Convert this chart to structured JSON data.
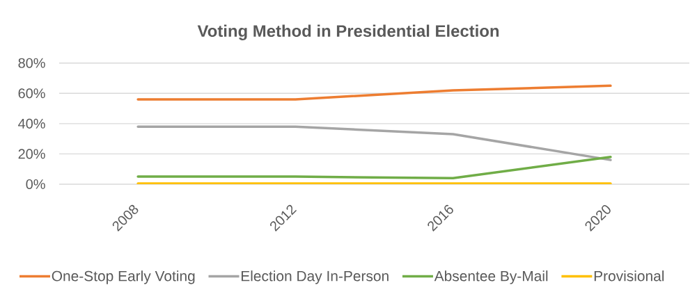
{
  "chart_data": {
    "type": "line",
    "title": "Voting Method in Presidential Election",
    "categories": [
      "2008",
      "2012",
      "2016",
      "2020"
    ],
    "series": [
      {
        "name": "One-Stop Early Voting",
        "color": "#ed7d31",
        "values": [
          56,
          56,
          62,
          65
        ]
      },
      {
        "name": "Election Day In-Person",
        "color": "#a5a5a5",
        "values": [
          38,
          38,
          33,
          16
        ]
      },
      {
        "name": "Absentee By-Mail",
        "color": "#70ad47",
        "values": [
          5,
          5,
          4,
          18
        ]
      },
      {
        "name": "Provisional",
        "color": "#ffc000",
        "values": [
          0.5,
          0.5,
          0.5,
          0.5
        ]
      }
    ],
    "ylim": [
      0,
      80
    ],
    "yticks": [
      {
        "value": 0,
        "label": "0%"
      },
      {
        "value": 20,
        "label": "20%"
      },
      {
        "value": 40,
        "label": "40%"
      },
      {
        "value": 60,
        "label": "60%"
      },
      {
        "value": 80,
        "label": "80%"
      }
    ],
    "grid": "y",
    "legend": "bottom",
    "marker": "none",
    "line_style": "solid"
  }
}
